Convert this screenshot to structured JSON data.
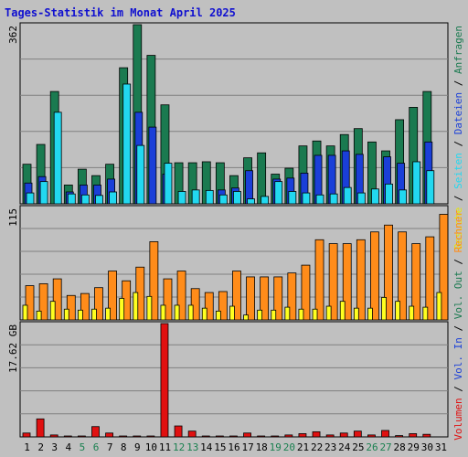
{
  "chart_data": {
    "type": "bar",
    "title": "Tages-Statistik im Monat April 2025",
    "categories": [
      "1",
      "2",
      "3",
      "4",
      "5",
      "6",
      "7",
      "8",
      "9",
      "10",
      "11",
      "12",
      "13",
      "14",
      "15",
      "16",
      "17",
      "18",
      "19",
      "20",
      "21",
      "22",
      "23",
      "24",
      "25",
      "26",
      "27",
      "28",
      "29",
      "30",
      "31"
    ],
    "weekend_categories": [
      "5",
      "6",
      "12",
      "13",
      "19",
      "20",
      "26",
      "27"
    ],
    "panels": [
      {
        "name": "top",
        "ymax_label": "362",
        "ylim": [
          0,
          362
        ],
        "series": [
          {
            "name": "Anfragen",
            "color": "#1a7a50",
            "values": [
              80,
              120,
              227,
              38,
              70,
              57,
              80,
              275,
              362,
              300,
              200,
              83,
              83,
              85,
              83,
              57,
              93,
              103,
              60,
              72,
              117,
              127,
              117,
              140,
              152,
              125,
              107,
              170,
              195,
              227,
              0
            ]
          },
          {
            "name": "Dateien",
            "color": "#1a3fd8",
            "values": [
              42,
              55,
              0,
              24,
              38,
              38,
              50,
              0,
              185,
              155,
              60,
              0,
              0,
              0,
              28,
              32,
              67,
              0,
              50,
              52,
              62,
              98,
              98,
              107,
              100,
              0,
              95,
              82,
              0,
              125,
              0
            ]
          },
          {
            "name": "Seiten",
            "color": "#22d8f0",
            "values": [
              22,
              45,
              185,
              20,
              18,
              17,
              24,
              242,
              118,
              0,
              82,
              25,
              28,
              27,
              18,
              25,
              10,
              15,
              45,
              25,
              22,
              18,
              20,
              33,
              22,
              30,
              40,
              28,
              85,
              67,
              0
            ]
          }
        ]
      },
      {
        "name": "middle",
        "ymax_label": "115",
        "ylim": [
          0,
          115
        ],
        "series": [
          {
            "name": "Rechner",
            "color": "#ff8c1a",
            "values": [
              35,
              37,
              42,
              25,
              27,
              33,
              50,
              40,
              54,
              80,
              42,
              50,
              32,
              28,
              29,
              50,
              44,
              44,
              44,
              48,
              56,
              82,
              78,
              78,
              82,
              90,
              97,
              90,
              78,
              85,
              108
            ]
          },
          {
            "name": "Besuche",
            "color": "#ffff20",
            "values": [
              15,
              9,
              19,
              11,
              10,
              11,
              12,
              22,
              28,
              24,
              15,
              15,
              15,
              12,
              9,
              14,
              5,
              10,
              10,
              13,
              11,
              11,
              14,
              19,
              12,
              12,
              23,
              19,
              14,
              13,
              28
            ]
          }
        ]
      },
      {
        "name": "bottom",
        "ymax_label": "17.62 GB",
        "ylim": [
          0,
          17.62
        ],
        "series": [
          {
            "name": "Volumen",
            "color": "#e01010",
            "values": [
              0.6,
              2.8,
              0.3,
              0.1,
              0.1,
              1.6,
              0.6,
              0.1,
              0.1,
              0.1,
              17.62,
              1.7,
              0.9,
              0.1,
              0.1,
              0.1,
              0.6,
              0.1,
              0.1,
              0.3,
              0.5,
              0.8,
              0.3,
              0.6,
              0.9,
              0.3,
              1.0,
              0.2,
              0.5,
              0.4,
              0
            ]
          }
        ]
      }
    ],
    "right_legend_top": [
      {
        "text": "Anfragen",
        "color": "#1a7a50"
      },
      {
        "text": "Dateien",
        "color": "#1a3fd8"
      },
      {
        "text": "Seiten",
        "color": "#22d8f0"
      },
      {
        "text": "Besuche",
        "color": "#e8e800"
      }
    ],
    "right_legend_bottom": [
      {
        "text": "Rechner",
        "color": "#ff8c1a"
      },
      {
        "text": "Vol. Out",
        "color": "#1a7a50"
      },
      {
        "text": "Vol. In",
        "color": "#1a3fd8"
      },
      {
        "text": "Volumen",
        "color": "#e01010"
      }
    ],
    "legend_separator": "/",
    "grid": true,
    "title_color": "#1010d0",
    "weekday_label_color": "#000000",
    "weekend_label_color": "#1a8050"
  }
}
